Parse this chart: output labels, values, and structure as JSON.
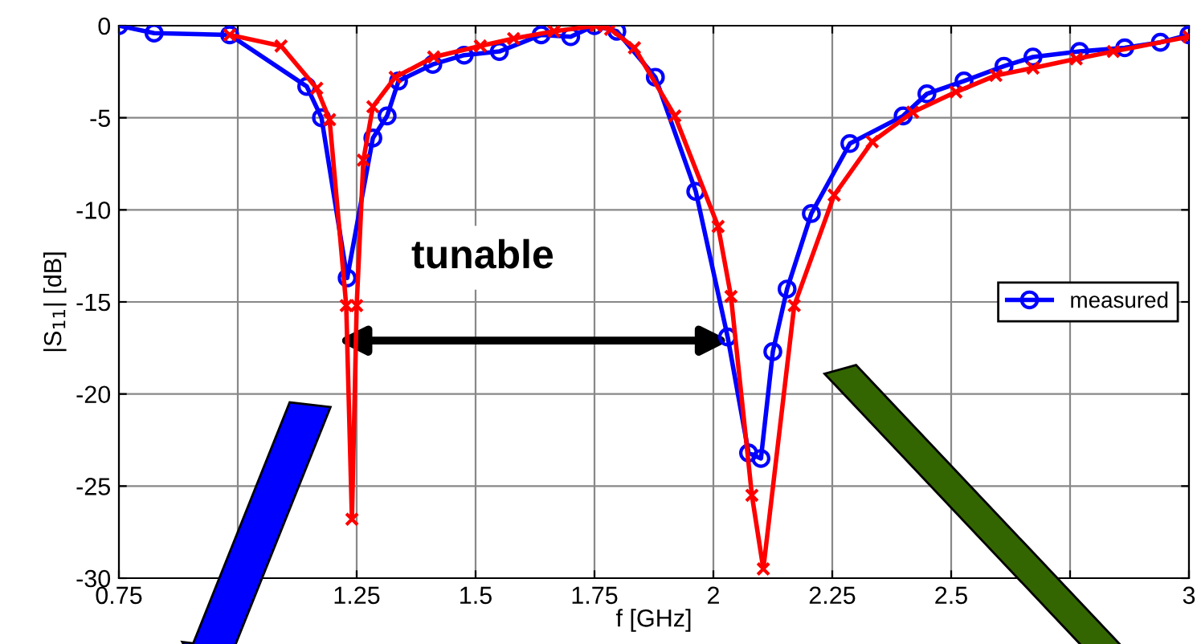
{
  "chart_data": {
    "type": "line",
    "xlabel": "f [GHz]",
    "ylabel": "|S$_{11}$| [dB]",
    "annotations": [
      "tunable"
    ],
    "xlim": [
      0.75,
      3
    ],
    "ylim": [
      -30,
      0
    ],
    "xticks": [
      0.75,
      {
        "value": 1,
        "label": null
      },
      1.25,
      1.5,
      1.75,
      2,
      2.25,
      2.5,
      {
        "value": 2.75,
        "label": null
      },
      3
    ],
    "yticks": [
      -30,
      -25,
      -20,
      -15,
      -10,
      -5,
      0
    ],
    "grid": true,
    "legend": "right",
    "line_style": "solid",
    "series": [
      {
        "name": "measured",
        "color": "#0000ff",
        "marker": "circle",
        "x": [
          0.75,
          0.824,
          0.983,
          1.145,
          1.176,
          1.23,
          1.284,
          1.314,
          1.338,
          1.41,
          1.476,
          1.55,
          1.638,
          1.7,
          1.75,
          1.797,
          1.878,
          1.963,
          2.03,
          2.074,
          2.1,
          2.125,
          2.155,
          2.206,
          2.287,
          2.399,
          2.449,
          2.527,
          2.611,
          2.672,
          2.77,
          2.865,
          2.94,
          3.0
        ],
        "values": [
          0,
          -0.4,
          -0.5,
          -3.3,
          -5,
          -13.7,
          -6.1,
          -4.9,
          -3.0,
          -2.1,
          -1.6,
          -1.4,
          -0.5,
          -0.6,
          0,
          -0.3,
          -2.8,
          -9.0,
          -16.9,
          -23.2,
          -23.5,
          -17.7,
          -14.3,
          -10.2,
          -6.4,
          -4.9,
          -3.7,
          -3.0,
          -2.2,
          -1.7,
          -1.4,
          -1.2,
          -0.9,
          -0.5
        ]
      },
      {
        "color": "#ff0000",
        "marker": "cross",
        "x": [
          0.983,
          1.091,
          1.166,
          1.193,
          1.228,
          1.24,
          1.25,
          1.264,
          1.284,
          1.331,
          1.412,
          1.51,
          1.58,
          1.665,
          1.753,
          1.784,
          1.834,
          1.919,
          2.01,
          2.037,
          2.081,
          2.105,
          2.17,
          2.254,
          2.334,
          2.419,
          2.51,
          2.594,
          2.672,
          2.763,
          2.841,
          3.0
        ],
        "values": [
          -0.5,
          -1.1,
          -3.4,
          -5.1,
          -15.2,
          -26.8,
          -15.2,
          -7.3,
          -4.4,
          -2.8,
          -1.7,
          -1.1,
          -0.7,
          -0.3,
          0,
          -0.2,
          -1.2,
          -4.9,
          -10.9,
          -14.7,
          -25.5,
          -29.5,
          -15.2,
          -9.2,
          -6.3,
          -4.7,
          -3.6,
          -2.7,
          -2.3,
          -1.8,
          -1.4,
          -0.6
        ]
      }
    ]
  }
}
